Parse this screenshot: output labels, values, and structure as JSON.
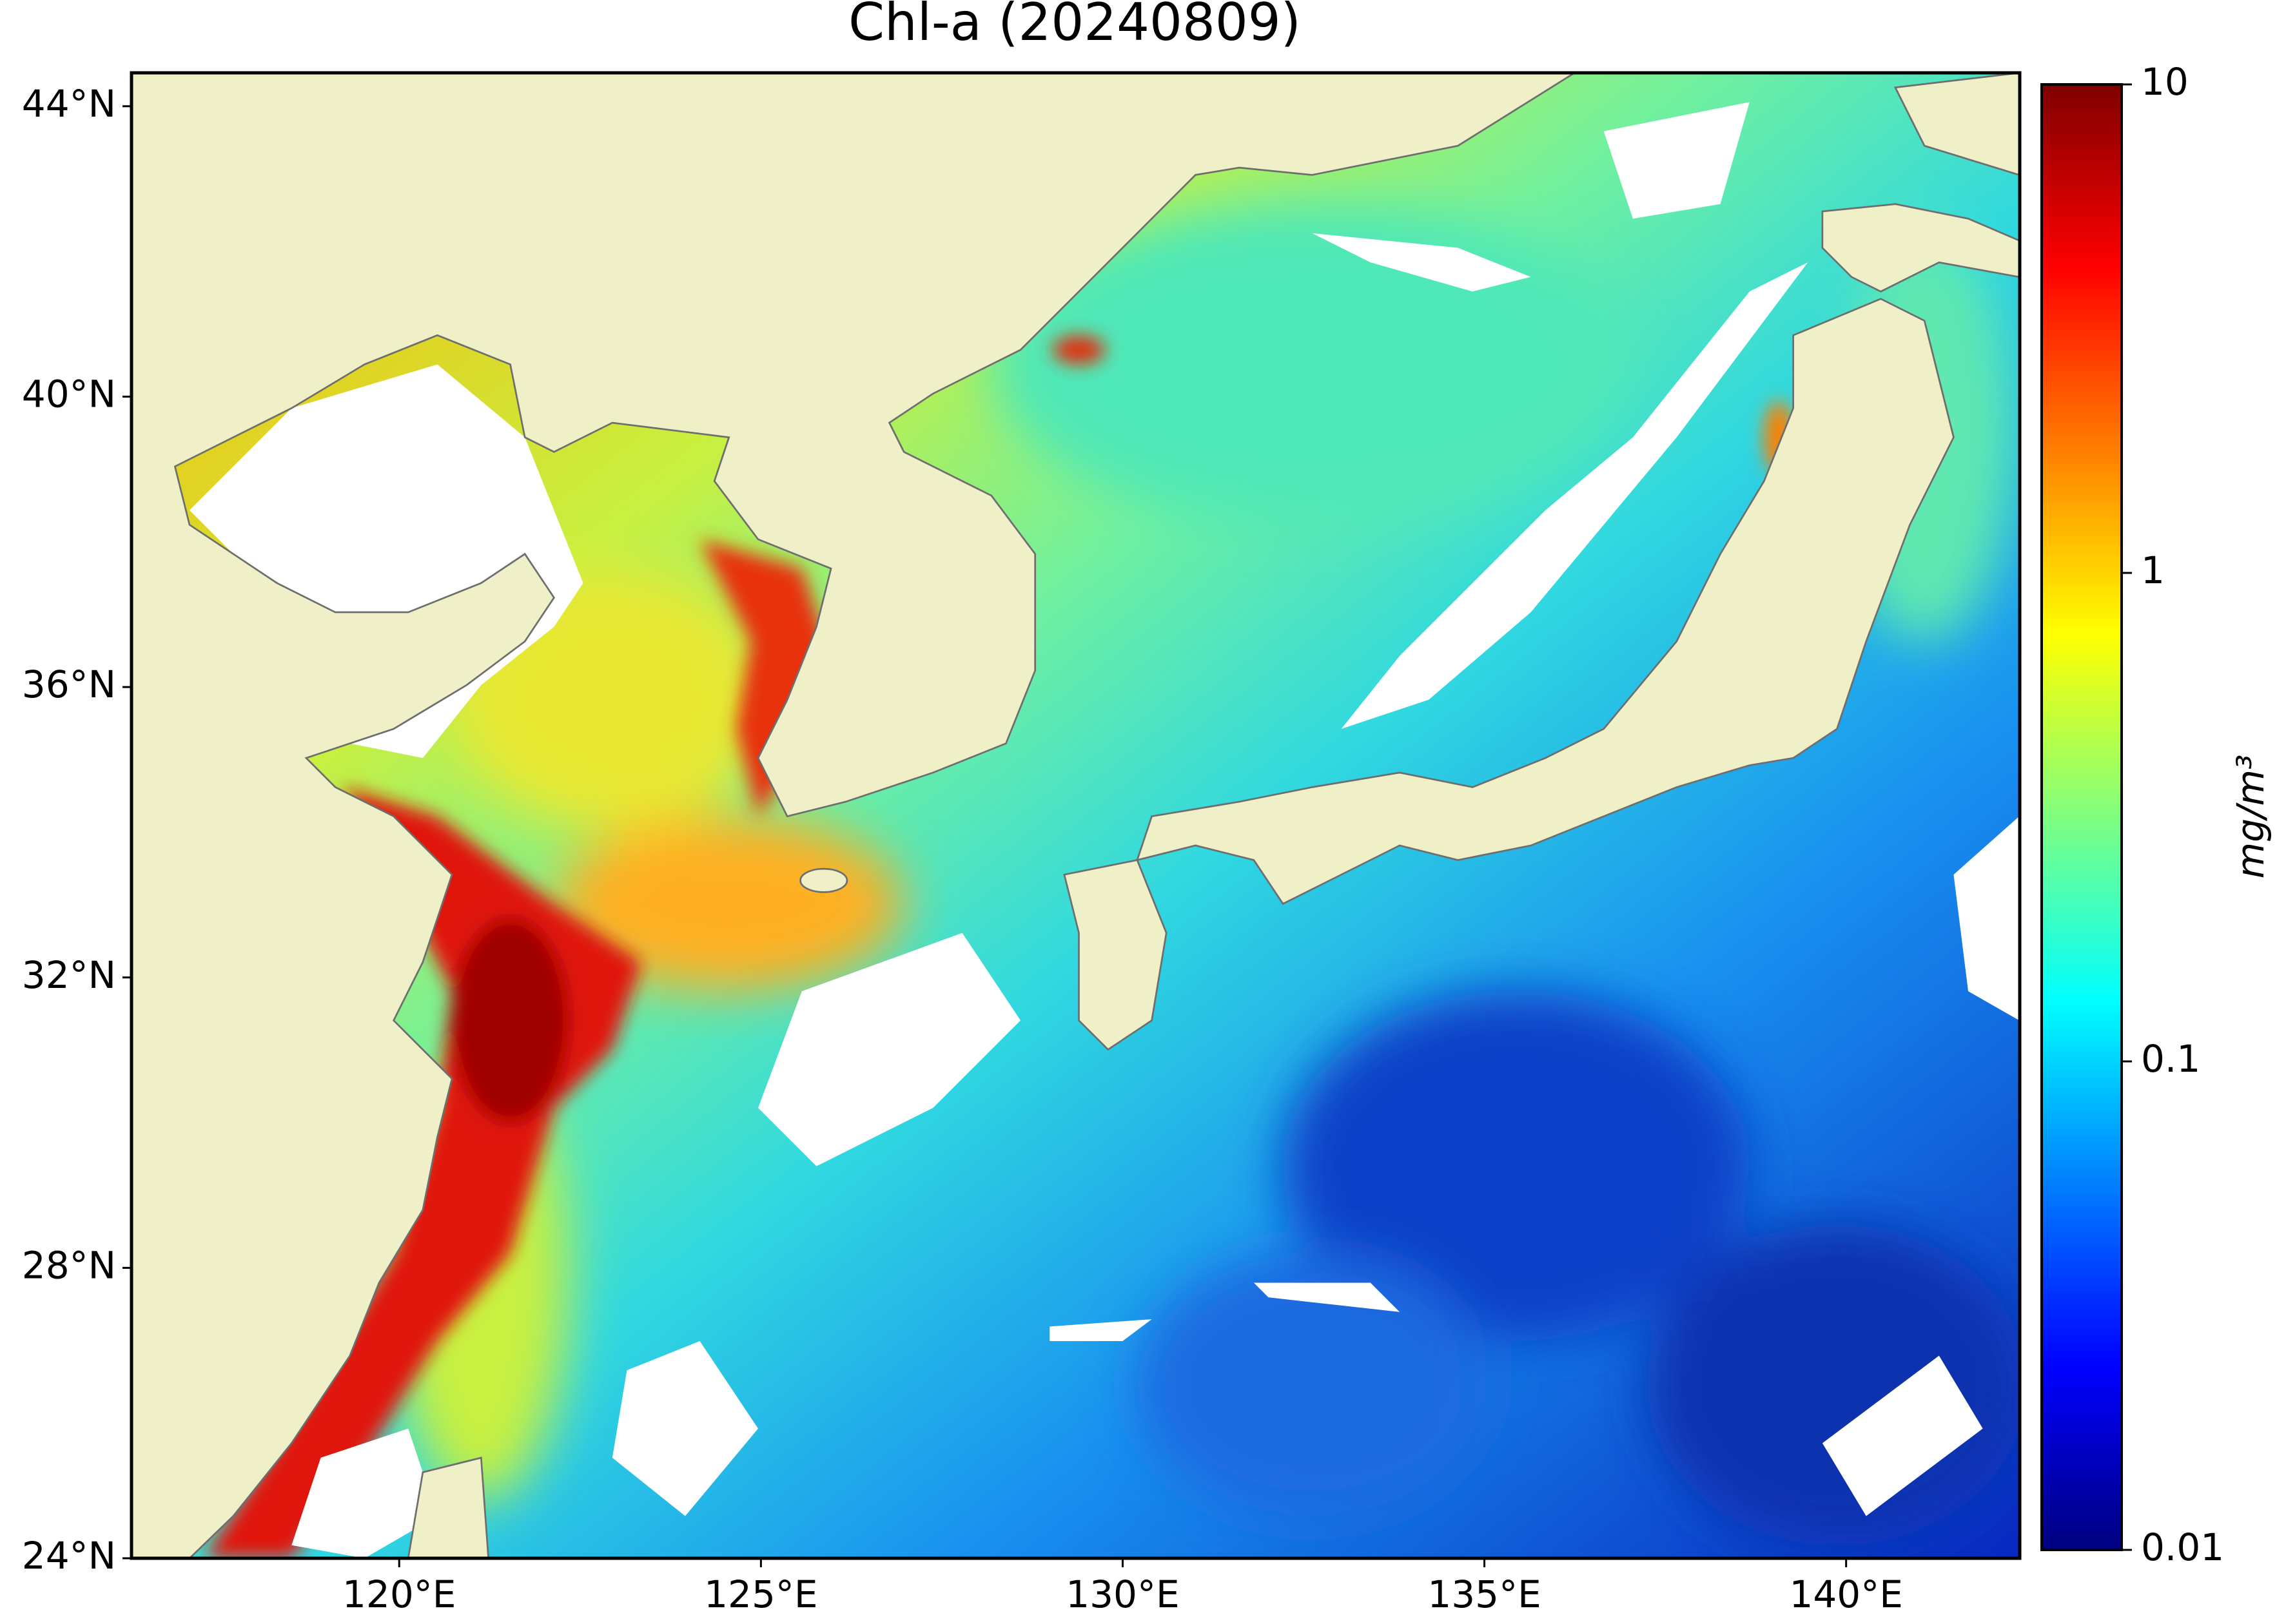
{
  "chart_data": {
    "type": "map",
    "title": "Chl-a (20240809)",
    "xlim": [
      116.3,
      142.4
    ],
    "ylim": [
      24,
      44.46
    ],
    "xticks": [
      {
        "value": 120,
        "label": "120°E"
      },
      {
        "value": 125,
        "label": "125°E"
      },
      {
        "value": 130,
        "label": "130°E"
      },
      {
        "value": 135,
        "label": "135°E"
      },
      {
        "value": 140,
        "label": "140°E"
      }
    ],
    "yticks": [
      {
        "value": 24,
        "label": "24°N"
      },
      {
        "value": 28,
        "label": "28°N"
      },
      {
        "value": 32,
        "label": "32°N"
      },
      {
        "value": 36,
        "label": "36°N"
      },
      {
        "value": 40,
        "label": "40°N"
      },
      {
        "value": 44,
        "label": "44°N"
      }
    ],
    "colorbar": {
      "label": "mg/m³",
      "scale": "log",
      "lim": [
        0.01,
        10
      ],
      "ticks": [
        0.01,
        0.1,
        1,
        10
      ],
      "colormap": "jet"
    }
  }
}
